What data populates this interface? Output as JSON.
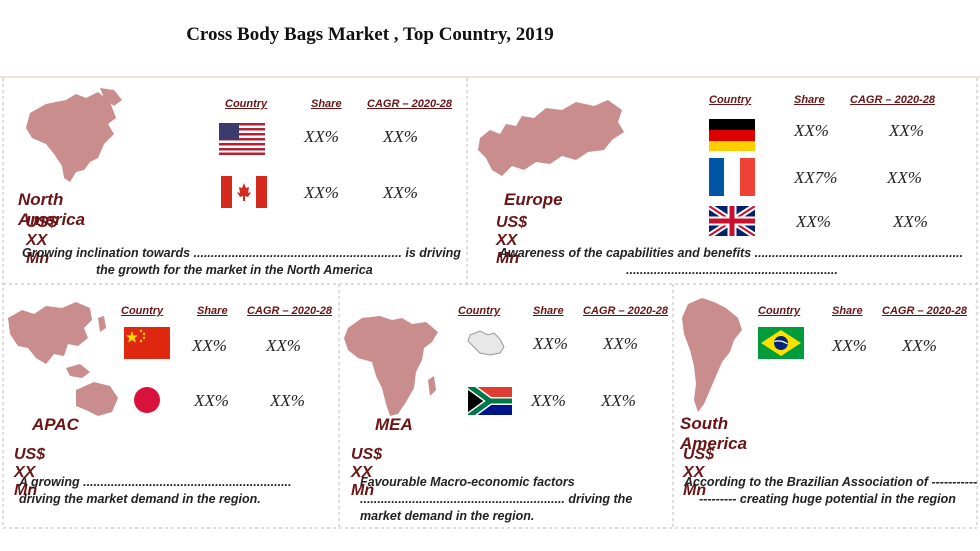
{
  "title": "Cross Body Bags Market , Top Country, 2019",
  "columns": {
    "country": "Country",
    "share": "Share",
    "cagr": "CAGR – 2020-28"
  },
  "colors": {
    "accent": "#6b1416",
    "map": "#c98d8d",
    "border": "#cccccc"
  },
  "regions": {
    "north_america": {
      "name": "North America",
      "size": "US$ XX Mn",
      "rows": [
        {
          "flag": "usa-flag-icon",
          "share": "XX%",
          "cagr": "XX%"
        },
        {
          "flag": "canada-flag-icon",
          "share": "XX%",
          "cagr": "XX%"
        }
      ],
      "note_1": "Growing inclination towards ............................................................ is driving",
      "note_2": "the growth for the market in the North America"
    },
    "europe": {
      "name": "Europe",
      "size": "US$ XX Mn",
      "rows": [
        {
          "flag": "germany-flag-icon",
          "share": "XX%",
          "cagr": "XX%"
        },
        {
          "flag": "france-flag-icon",
          "share": "XX7%",
          "cagr": "XX%"
        },
        {
          "flag": "uk-flag-icon",
          "share": "XX%",
          "cagr": "XX%"
        }
      ],
      "note_1": "Awareness of the capabilities and benefits ............................................................",
      "note_2": "............................................................."
    },
    "apac": {
      "name": "APAC",
      "size": "US$ XX Mn",
      "rows": [
        {
          "flag": "china-flag-icon",
          "share": "XX%",
          "cagr": "XX%"
        },
        {
          "flag": "japan-flag-icon",
          "share": "XX%",
          "cagr": "XX%"
        }
      ],
      "note_1": "A growing ............................................................",
      "note_2": "driving the market demand in the region."
    },
    "mea": {
      "name": "MEA",
      "size": "US$ XX Mn",
      "rows": [
        {
          "flag": "saudi-map-icon",
          "share": "XX%",
          "cagr": "XX%"
        },
        {
          "flag": "south-africa-flag-icon",
          "share": "XX%",
          "cagr": "XX%"
        }
      ],
      "note_1": "Favourable Macro-economic factors",
      "note_2": "........................................................... driving the",
      "note_3": "market demand in the region."
    },
    "south_america": {
      "name": "South America",
      "size": "US$ XX Mn",
      "rows": [
        {
          "flag": "brazil-flag-icon",
          "share": "XX%",
          "cagr": "XX%"
        }
      ],
      "note_1": "According to the Brazilian Association of -----------",
      "note_2": "--------- creating huge potential in the region"
    }
  }
}
